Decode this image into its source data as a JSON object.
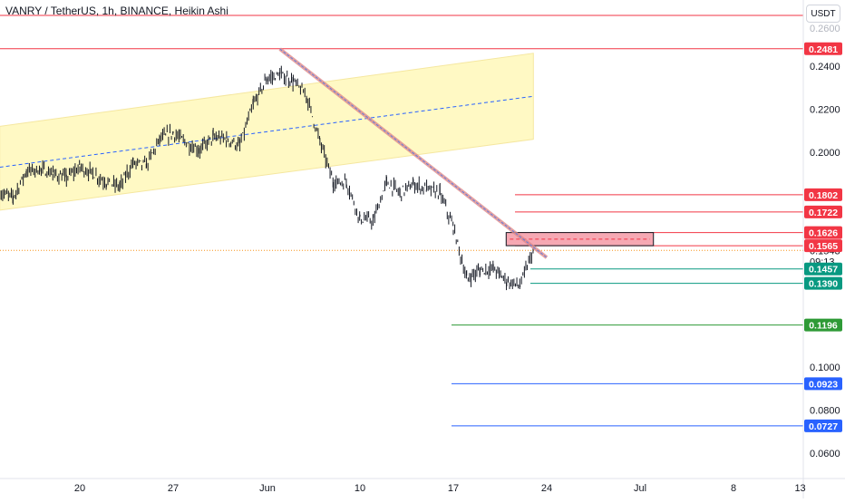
{
  "header": {
    "title": "VANRY / TetherUS, 1h, BINANCE, Heikin Ashi",
    "currency_label": "USDT"
  },
  "countdown": "09:13",
  "colors": {
    "resistance": "#f23645",
    "support": "#089981",
    "support_strong": "#2e9a36",
    "target": "#2962ff",
    "channel_fill": "#fff9c4",
    "channel_mid": "#2962ff",
    "trendline": "#e08a8a",
    "zone_fill": "#f6a8b3",
    "current": "#f7931a",
    "candles": "#131722"
  },
  "chart_data": {
    "type": "candlestick",
    "title": "VANRY / TetherUS, 1h, BINANCE, Heikin Ashi",
    "y_axis": {
      "ticks": [
        "0.2400",
        "0.2200",
        "0.2000",
        "0.1000",
        "0.0800",
        "0.0600"
      ],
      "position": "right"
    },
    "x_axis": {
      "ticks": [
        "20",
        "27",
        "Jun",
        "10",
        "17",
        "24",
        "Jul",
        "8",
        "13"
      ]
    },
    "current_price": "0.1543",
    "price_path": [
      {
        "d": "May 14",
        "p": 0.181
      },
      {
        "d": "May 15",
        "p": 0.179
      },
      {
        "d": "May 16",
        "p": 0.191
      },
      {
        "d": "May 17",
        "p": 0.192
      },
      {
        "d": "May 18",
        "p": 0.19
      },
      {
        "d": "May 19",
        "p": 0.188
      },
      {
        "d": "May 20",
        "p": 0.193
      },
      {
        "d": "May 21",
        "p": 0.19
      },
      {
        "d": "May 22",
        "p": 0.186
      },
      {
        "d": "May 23",
        "p": 0.184
      },
      {
        "d": "May 24",
        "p": 0.195
      },
      {
        "d": "May 25",
        "p": 0.194
      },
      {
        "d": "May 26",
        "p": 0.206
      },
      {
        "d": "May 27",
        "p": 0.209
      },
      {
        "d": "May 28",
        "p": 0.204
      },
      {
        "d": "May 29",
        "p": 0.201
      },
      {
        "d": "May 30",
        "p": 0.207
      },
      {
        "d": "May 31",
        "p": 0.206
      },
      {
        "d": "Jun 1",
        "p": 0.203
      },
      {
        "d": "Jun 2",
        "p": 0.222
      },
      {
        "d": "Jun 3",
        "p": 0.234
      },
      {
        "d": "Jun 4",
        "p": 0.236
      },
      {
        "d": "Jun 5",
        "p": 0.233
      },
      {
        "d": "Jun 6",
        "p": 0.226
      },
      {
        "d": "Jun 7",
        "p": 0.205
      },
      {
        "d": "Jun 8",
        "p": 0.186
      },
      {
        "d": "Jun 9",
        "p": 0.186
      },
      {
        "d": "Jun 10",
        "p": 0.169
      },
      {
        "d": "Jun 11",
        "p": 0.168
      },
      {
        "d": "Jun 12",
        "p": 0.186
      },
      {
        "d": "Jun 13",
        "p": 0.181
      },
      {
        "d": "Jun 14",
        "p": 0.185
      },
      {
        "d": "Jun 15",
        "p": 0.183
      },
      {
        "d": "Jun 16",
        "p": 0.181
      },
      {
        "d": "Jun 17",
        "p": 0.165
      },
      {
        "d": "Jun 18",
        "p": 0.141
      },
      {
        "d": "Jun 19",
        "p": 0.145
      },
      {
        "d": "Jun 20",
        "p": 0.146
      },
      {
        "d": "Jun 21",
        "p": 0.14
      },
      {
        "d": "Jun 22",
        "p": 0.138
      },
      {
        "d": "Jun 23",
        "p": 0.1543
      }
    ],
    "channel": {
      "upper": {
        "from": {
          "d": "May 14",
          "p": 0.212
        },
        "to": {
          "d": "Jun 23",
          "p": 0.246
        }
      },
      "lower": {
        "from": {
          "d": "May 14",
          "p": 0.173
        },
        "to": {
          "d": "Jun 23",
          "p": 0.206
        }
      },
      "mid": {
        "from": {
          "d": "May 14",
          "p": 0.193
        },
        "to": {
          "d": "Jun 23",
          "p": 0.226
        }
      }
    },
    "trendline": {
      "from": {
        "d": "Jun 4",
        "p": 0.248
      },
      "to": {
        "d": "Jun 24",
        "p": 0.151
      }
    },
    "supply_zone": {
      "from": "Jun 23",
      "to": "Jul 2",
      "top": 0.1626,
      "bottom": 0.1565
    },
    "levels": [
      {
        "label": "0.2481",
        "value": 0.2481,
        "kind": "resistance",
        "span": "full"
      },
      {
        "label": "0.1802",
        "value": 0.1802,
        "kind": "resistance",
        "span": "right"
      },
      {
        "label": "0.1722",
        "value": 0.1722,
        "kind": "resistance",
        "span": "right"
      },
      {
        "label": "0.1626",
        "value": 0.1626,
        "kind": "resistance",
        "span": "right"
      },
      {
        "label": "0.1565",
        "value": 0.1565,
        "kind": "resistance",
        "span": "right"
      },
      {
        "label": "0.1457",
        "value": 0.1457,
        "kind": "support",
        "span": "right"
      },
      {
        "label": "0.1390",
        "value": 0.139,
        "kind": "support",
        "span": "right"
      },
      {
        "label": "0.1196",
        "value": 0.1196,
        "kind": "support_strong",
        "span": "right"
      },
      {
        "label": "0.0923",
        "value": 0.0923,
        "kind": "target",
        "span": "right"
      },
      {
        "label": "0.0727",
        "value": 0.0727,
        "kind": "target",
        "span": "right"
      }
    ]
  }
}
